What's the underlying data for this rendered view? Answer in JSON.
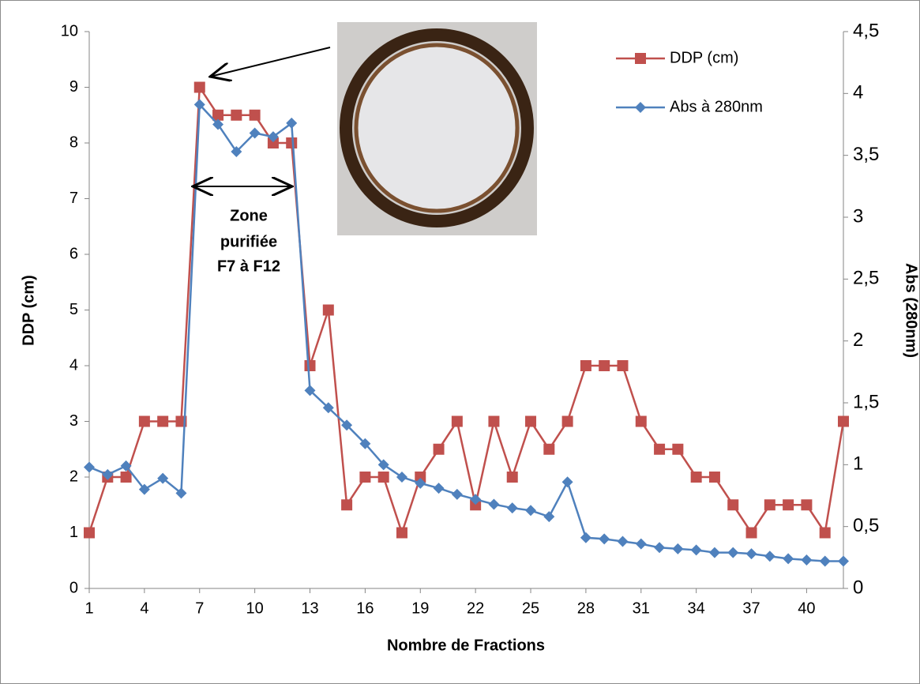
{
  "chart_data": {
    "type": "line",
    "x_label": "Nombre de Fractions",
    "y_label": "DDP (cm)",
    "y2_label": "Abs (280nm)",
    "annotation": [
      "Zone",
      "purifiée",
      "F7 à F12"
    ],
    "x": [
      1,
      2,
      3,
      4,
      5,
      6,
      7,
      8,
      9,
      10,
      11,
      12,
      13,
      14,
      15,
      16,
      17,
      18,
      19,
      20,
      21,
      22,
      23,
      24,
      25,
      26,
      27,
      28,
      29,
      30,
      31,
      32,
      33,
      34,
      35,
      36,
      37,
      38,
      39,
      40,
      41,
      42
    ],
    "xlim": [
      1,
      42
    ],
    "xticks": [
      1,
      4,
      7,
      10,
      13,
      16,
      19,
      22,
      25,
      28,
      31,
      34,
      37,
      40
    ],
    "ylim": [
      0,
      10
    ],
    "yticks": [
      0,
      1,
      2,
      3,
      4,
      5,
      6,
      7,
      8,
      9,
      10
    ],
    "y2lim": [
      0,
      4.5
    ],
    "y2ticks": [
      0,
      {
        "value": 0.5,
        "label": "0,5"
      },
      1,
      {
        "value": 1.5,
        "label": "1,5"
      },
      2,
      {
        "value": 2.5,
        "label": "2,5"
      },
      3,
      {
        "value": 3.5,
        "label": "3,5"
      },
      4,
      {
        "value": 4.5,
        "label": "4,5"
      }
    ],
    "legend": "upper right",
    "series": [
      {
        "name": "DDP (cm)",
        "color": "#c0504d",
        "marker": "square",
        "values": [
          1,
          2,
          2,
          3,
          3,
          3,
          9,
          8.5,
          8.5,
          8.5,
          8,
          8,
          4,
          5,
          1.5,
          2,
          2,
          1,
          2,
          2.5,
          3,
          1.5,
          3,
          2,
          3,
          2.5,
          3,
          4,
          4,
          4,
          3,
          2.5,
          2.5,
          2,
          2,
          1.5,
          1,
          1.5,
          1.5,
          1.5,
          1,
          3
        ]
      },
      {
        "name": "Abs à 280nm",
        "color": "#4f81bd",
        "marker": "diamond",
        "axis": "y2",
        "values": [
          0.98,
          0.92,
          0.99,
          0.8,
          0.89,
          0.77,
          3.91,
          3.75,
          3.53,
          3.68,
          3.65,
          3.76,
          1.6,
          1.46,
          1.32,
          1.17,
          1.0,
          0.9,
          0.85,
          0.81,
          0.76,
          0.72,
          0.68,
          0.65,
          0.63,
          0.58,
          0.86,
          0.41,
          0.4,
          0.38,
          0.36,
          0.33,
          0.32,
          0.31,
          0.29,
          0.29,
          0.28,
          0.26,
          0.24,
          0.23,
          0.22,
          0.22
        ]
      }
    ]
  }
}
